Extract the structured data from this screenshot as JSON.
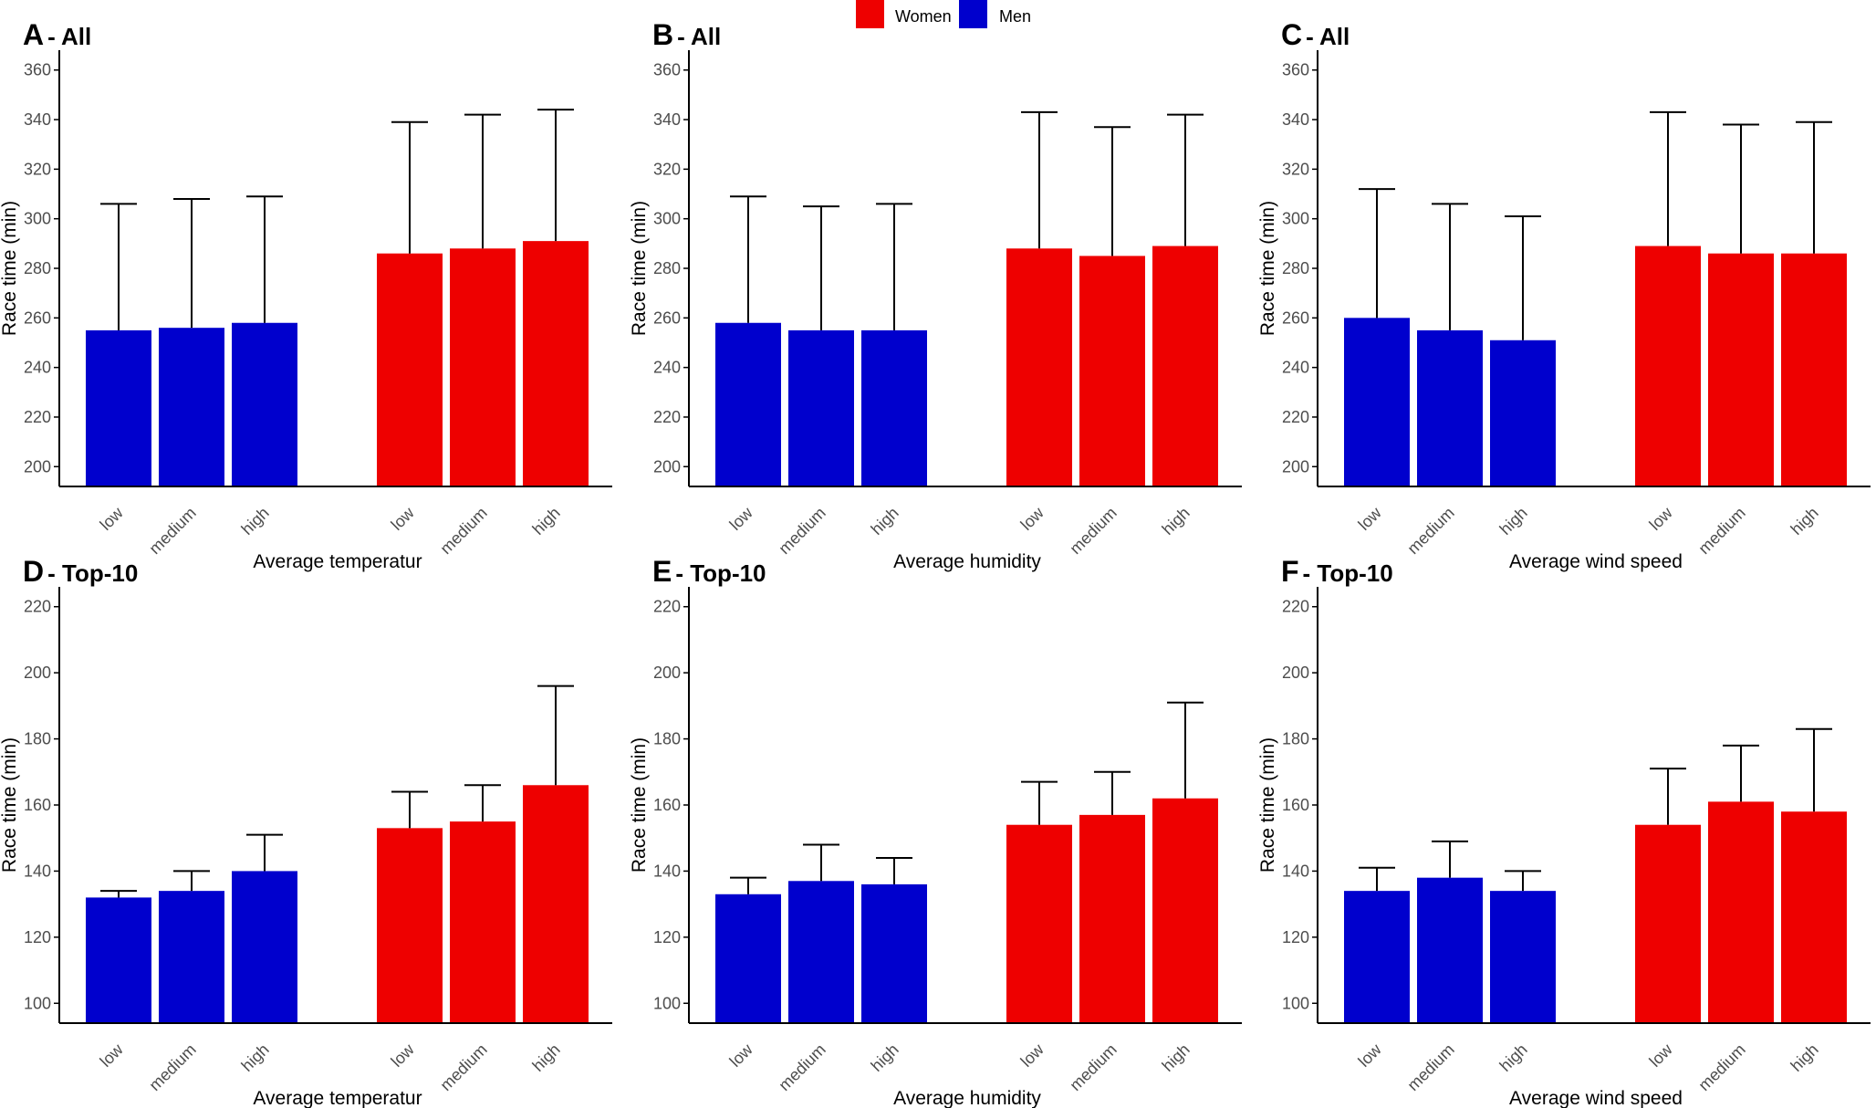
{
  "legend": {
    "items": [
      {
        "label": "Women",
        "color": "#EE0000"
      },
      {
        "label": "Men",
        "color": "#0000CD"
      }
    ]
  },
  "colors": {
    "women": "#EE0000",
    "men": "#0000CD",
    "axis": "#000000",
    "errorbar": "#000000"
  },
  "chart_data": [
    {
      "type": "bar",
      "panel_letter": "A",
      "panel_suffix": "- All",
      "xlabel": "Average temperatur",
      "ylabel": "Race time (min)",
      "ylim": [
        192,
        368
      ],
      "yticks": [
        200,
        220,
        240,
        260,
        280,
        300,
        320,
        340,
        360
      ],
      "categories": [
        "low",
        "medium",
        "high"
      ],
      "series": [
        {
          "name": "Men",
          "values": [
            255,
            256,
            258
          ],
          "error_upper": [
            306,
            308,
            309
          ]
        },
        {
          "name": "Women",
          "values": [
            286,
            288,
            291
          ],
          "error_upper": [
            339,
            342,
            344
          ]
        }
      ]
    },
    {
      "type": "bar",
      "panel_letter": "B",
      "panel_suffix": "- All",
      "xlabel": "Average humidity",
      "ylabel": "Race time (min)",
      "ylim": [
        192,
        368
      ],
      "yticks": [
        200,
        220,
        240,
        260,
        280,
        300,
        320,
        340,
        360
      ],
      "categories": [
        "low",
        "medium",
        "high"
      ],
      "series": [
        {
          "name": "Men",
          "values": [
            258,
            255,
            255
          ],
          "error_upper": [
            309,
            305,
            306
          ]
        },
        {
          "name": "Women",
          "values": [
            288,
            285,
            289
          ],
          "error_upper": [
            343,
            337,
            342
          ]
        }
      ]
    },
    {
      "type": "bar",
      "panel_letter": "C",
      "panel_suffix": "- All",
      "xlabel": "Average wind speed",
      "ylabel": "Race time (min)",
      "ylim": [
        192,
        368
      ],
      "yticks": [
        200,
        220,
        240,
        260,
        280,
        300,
        320,
        340,
        360
      ],
      "categories": [
        "low",
        "medium",
        "high"
      ],
      "series": [
        {
          "name": "Men",
          "values": [
            260,
            255,
            251
          ],
          "error_upper": [
            312,
            306,
            301
          ]
        },
        {
          "name": "Women",
          "values": [
            289,
            286,
            286
          ],
          "error_upper": [
            343,
            338,
            339
          ]
        }
      ]
    },
    {
      "type": "bar",
      "panel_letter": "D",
      "panel_suffix": "- Top-10",
      "xlabel": "Average temperatur",
      "ylabel": "Race time (min)",
      "ylim": [
        94,
        226
      ],
      "yticks": [
        100,
        120,
        140,
        160,
        180,
        200,
        220
      ],
      "categories": [
        "low",
        "medium",
        "high"
      ],
      "series": [
        {
          "name": "Men",
          "values": [
            132,
            134,
            140
          ],
          "error_upper": [
            134,
            140,
            151
          ]
        },
        {
          "name": "Women",
          "values": [
            153,
            155,
            166
          ],
          "error_upper": [
            164,
            166,
            196
          ]
        }
      ]
    },
    {
      "type": "bar",
      "panel_letter": "E",
      "panel_suffix": "- Top-10",
      "xlabel": "Average humidity",
      "ylabel": "Race time (min)",
      "ylim": [
        94,
        226
      ],
      "yticks": [
        100,
        120,
        140,
        160,
        180,
        200,
        220
      ],
      "categories": [
        "low",
        "medium",
        "high"
      ],
      "series": [
        {
          "name": "Men",
          "values": [
            133,
            137,
            136
          ],
          "error_upper": [
            138,
            148,
            144
          ]
        },
        {
          "name": "Women",
          "values": [
            154,
            157,
            162
          ],
          "error_upper": [
            167,
            170,
            191
          ]
        }
      ]
    },
    {
      "type": "bar",
      "panel_letter": "F",
      "panel_suffix": "- Top-10",
      "xlabel": "Average wind speed",
      "ylabel": "Race time (min)",
      "ylim": [
        94,
        226
      ],
      "yticks": [
        100,
        120,
        140,
        160,
        180,
        200,
        220
      ],
      "categories": [
        "low",
        "medium",
        "high"
      ],
      "series": [
        {
          "name": "Men",
          "values": [
            134,
            138,
            134
          ],
          "error_upper": [
            141,
            149,
            140
          ]
        },
        {
          "name": "Women",
          "values": [
            154,
            161,
            158
          ],
          "error_upper": [
            171,
            178,
            183
          ]
        }
      ]
    }
  ]
}
